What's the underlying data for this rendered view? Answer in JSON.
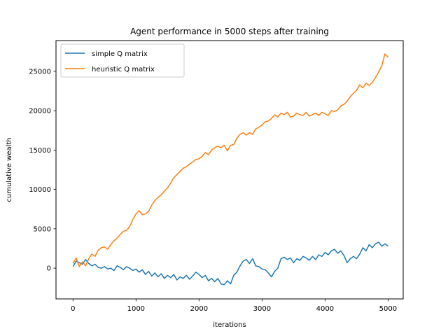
{
  "chart_data": {
    "type": "line",
    "title": "Agent performance in 5000 steps after training",
    "xlabel": "iterations",
    "ylabel": "cumulative wealth",
    "xlim": [
      -270,
      5240
    ],
    "ylim": [
      -3900,
      28900
    ],
    "xticks": [
      0,
      1000,
      2000,
      3000,
      4000,
      5000
    ],
    "yticks": [
      0,
      5000,
      10000,
      15000,
      20000,
      25000
    ],
    "grid": false,
    "legend_position": "upper-left",
    "series": [
      {
        "name": "simple Q matrix",
        "color": "#1f77b4",
        "points": [
          [
            0,
            200
          ],
          [
            50,
            900
          ],
          [
            100,
            700
          ],
          [
            150,
            500
          ],
          [
            200,
            1100
          ],
          [
            250,
            600
          ],
          [
            300,
            300
          ],
          [
            350,
            500
          ],
          [
            400,
            100
          ],
          [
            450,
            0
          ],
          [
            500,
            200
          ],
          [
            550,
            -100
          ],
          [
            600,
            0
          ],
          [
            650,
            -300
          ],
          [
            700,
            300
          ],
          [
            750,
            100
          ],
          [
            800,
            -200
          ],
          [
            850,
            200
          ],
          [
            900,
            0
          ],
          [
            950,
            -300
          ],
          [
            1000,
            -100
          ],
          [
            1050,
            -500
          ],
          [
            1100,
            -200
          ],
          [
            1150,
            -800
          ],
          [
            1200,
            -400
          ],
          [
            1250,
            -1000
          ],
          [
            1300,
            -600
          ],
          [
            1350,
            -1100
          ],
          [
            1400,
            -700
          ],
          [
            1450,
            -1300
          ],
          [
            1500,
            -900
          ],
          [
            1550,
            -1200
          ],
          [
            1600,
            -800
          ],
          [
            1650,
            -1500
          ],
          [
            1700,
            -1100
          ],
          [
            1750,
            -1300
          ],
          [
            1800,
            -900
          ],
          [
            1850,
            -1400
          ],
          [
            1900,
            -1000
          ],
          [
            1950,
            -500
          ],
          [
            2000,
            -800
          ],
          [
            2050,
            -1200
          ],
          [
            2100,
            -900
          ],
          [
            2150,
            -1600
          ],
          [
            2200,
            -1300
          ],
          [
            2250,
            -1700
          ],
          [
            2300,
            -1300
          ],
          [
            2350,
            -2000
          ],
          [
            2400,
            -2100
          ],
          [
            2450,
            -1600
          ],
          [
            2500,
            -2000
          ],
          [
            2550,
            -900
          ],
          [
            2600,
            -500
          ],
          [
            2650,
            300
          ],
          [
            2700,
            900
          ],
          [
            2750,
            1100
          ],
          [
            2800,
            600
          ],
          [
            2850,
            1200
          ],
          [
            2900,
            300
          ],
          [
            2950,
            200
          ],
          [
            3000,
            -100
          ],
          [
            3050,
            -200
          ],
          [
            3100,
            -600
          ],
          [
            3150,
            -1100
          ],
          [
            3200,
            -400
          ],
          [
            3250,
            0
          ],
          [
            3300,
            1200
          ],
          [
            3350,
            1400
          ],
          [
            3400,
            1100
          ],
          [
            3450,
            1300
          ],
          [
            3500,
            700
          ],
          [
            3550,
            1200
          ],
          [
            3600,
            1000
          ],
          [
            3650,
            1500
          ],
          [
            3700,
            1300
          ],
          [
            3750,
            1000
          ],
          [
            3800,
            1500
          ],
          [
            3850,
            1100
          ],
          [
            3900,
            1700
          ],
          [
            3950,
            1500
          ],
          [
            4000,
            2000
          ],
          [
            4050,
            1700
          ],
          [
            4100,
            2200
          ],
          [
            4150,
            2400
          ],
          [
            4200,
            1900
          ],
          [
            4250,
            2200
          ],
          [
            4300,
            1600
          ],
          [
            4350,
            700
          ],
          [
            4400,
            1200
          ],
          [
            4450,
            1500
          ],
          [
            4500,
            1200
          ],
          [
            4550,
            1800
          ],
          [
            4600,
            2600
          ],
          [
            4650,
            2200
          ],
          [
            4700,
            3000
          ],
          [
            4750,
            2600
          ],
          [
            4800,
            3100
          ],
          [
            4850,
            3300
          ],
          [
            4900,
            2800
          ],
          [
            4950,
            3100
          ],
          [
            5000,
            2800
          ]
        ]
      },
      {
        "name": "heuristic Q matrix",
        "color": "#ff7f0e",
        "points": [
          [
            0,
            600
          ],
          [
            50,
            1300
          ],
          [
            100,
            200
          ],
          [
            150,
            800
          ],
          [
            200,
            300
          ],
          [
            250,
            1200
          ],
          [
            300,
            1800
          ],
          [
            350,
            1500
          ],
          [
            400,
            2300
          ],
          [
            450,
            2600
          ],
          [
            500,
            2700
          ],
          [
            550,
            2400
          ],
          [
            600,
            3000
          ],
          [
            650,
            3500
          ],
          [
            700,
            3800
          ],
          [
            750,
            4300
          ],
          [
            800,
            4700
          ],
          [
            850,
            4800
          ],
          [
            900,
            5300
          ],
          [
            950,
            6200
          ],
          [
            1000,
            6900
          ],
          [
            1050,
            7300
          ],
          [
            1100,
            6800
          ],
          [
            1150,
            6900
          ],
          [
            1200,
            7200
          ],
          [
            1250,
            8000
          ],
          [
            1300,
            8600
          ],
          [
            1350,
            9000
          ],
          [
            1400,
            9300
          ],
          [
            1450,
            9800
          ],
          [
            1500,
            10200
          ],
          [
            1550,
            10800
          ],
          [
            1600,
            11500
          ],
          [
            1650,
            11900
          ],
          [
            1700,
            12300
          ],
          [
            1750,
            12700
          ],
          [
            1800,
            12900
          ],
          [
            1850,
            13200
          ],
          [
            1900,
            13500
          ],
          [
            1950,
            13800
          ],
          [
            2000,
            13900
          ],
          [
            2050,
            14200
          ],
          [
            2100,
            14700
          ],
          [
            2150,
            14400
          ],
          [
            2200,
            15000
          ],
          [
            2250,
            15300
          ],
          [
            2300,
            15500
          ],
          [
            2350,
            15300
          ],
          [
            2400,
            15600
          ],
          [
            2450,
            14900
          ],
          [
            2500,
            15600
          ],
          [
            2550,
            15700
          ],
          [
            2600,
            16500
          ],
          [
            2650,
            17000
          ],
          [
            2700,
            17200
          ],
          [
            2750,
            16900
          ],
          [
            2800,
            17200
          ],
          [
            2850,
            17000
          ],
          [
            2900,
            17700
          ],
          [
            2950,
            17900
          ],
          [
            3000,
            18200
          ],
          [
            3050,
            18600
          ],
          [
            3100,
            18700
          ],
          [
            3150,
            19000
          ],
          [
            3200,
            19500
          ],
          [
            3250,
            19200
          ],
          [
            3300,
            19700
          ],
          [
            3350,
            19500
          ],
          [
            3400,
            19800
          ],
          [
            3450,
            19200
          ],
          [
            3500,
            19300
          ],
          [
            3550,
            19700
          ],
          [
            3600,
            19500
          ],
          [
            3650,
            19400
          ],
          [
            3700,
            19800
          ],
          [
            3750,
            19300
          ],
          [
            3800,
            19500
          ],
          [
            3850,
            19700
          ],
          [
            3900,
            19400
          ],
          [
            3950,
            19800
          ],
          [
            4000,
            19600
          ],
          [
            4050,
            19400
          ],
          [
            4100,
            20000
          ],
          [
            4150,
            19900
          ],
          [
            4200,
            20100
          ],
          [
            4250,
            20600
          ],
          [
            4300,
            20800
          ],
          [
            4350,
            21200
          ],
          [
            4400,
            21800
          ],
          [
            4450,
            22200
          ],
          [
            4500,
            22600
          ],
          [
            4550,
            23300
          ],
          [
            4600,
            22900
          ],
          [
            4650,
            23500
          ],
          [
            4700,
            23200
          ],
          [
            4750,
            23600
          ],
          [
            4800,
            24200
          ],
          [
            4850,
            24900
          ],
          [
            4900,
            25700
          ],
          [
            4950,
            27200
          ],
          [
            5000,
            26800
          ]
        ]
      }
    ]
  }
}
